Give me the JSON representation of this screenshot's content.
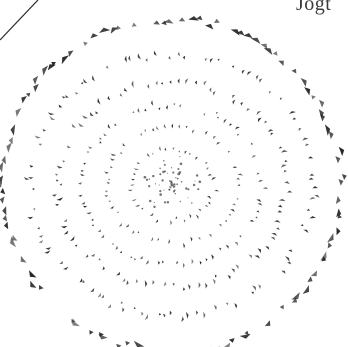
{
  "document": {
    "edge_text": "Jogt"
  },
  "seal": {
    "kind": "embossed-seal",
    "ink_color": "#1a1a1a"
  }
}
